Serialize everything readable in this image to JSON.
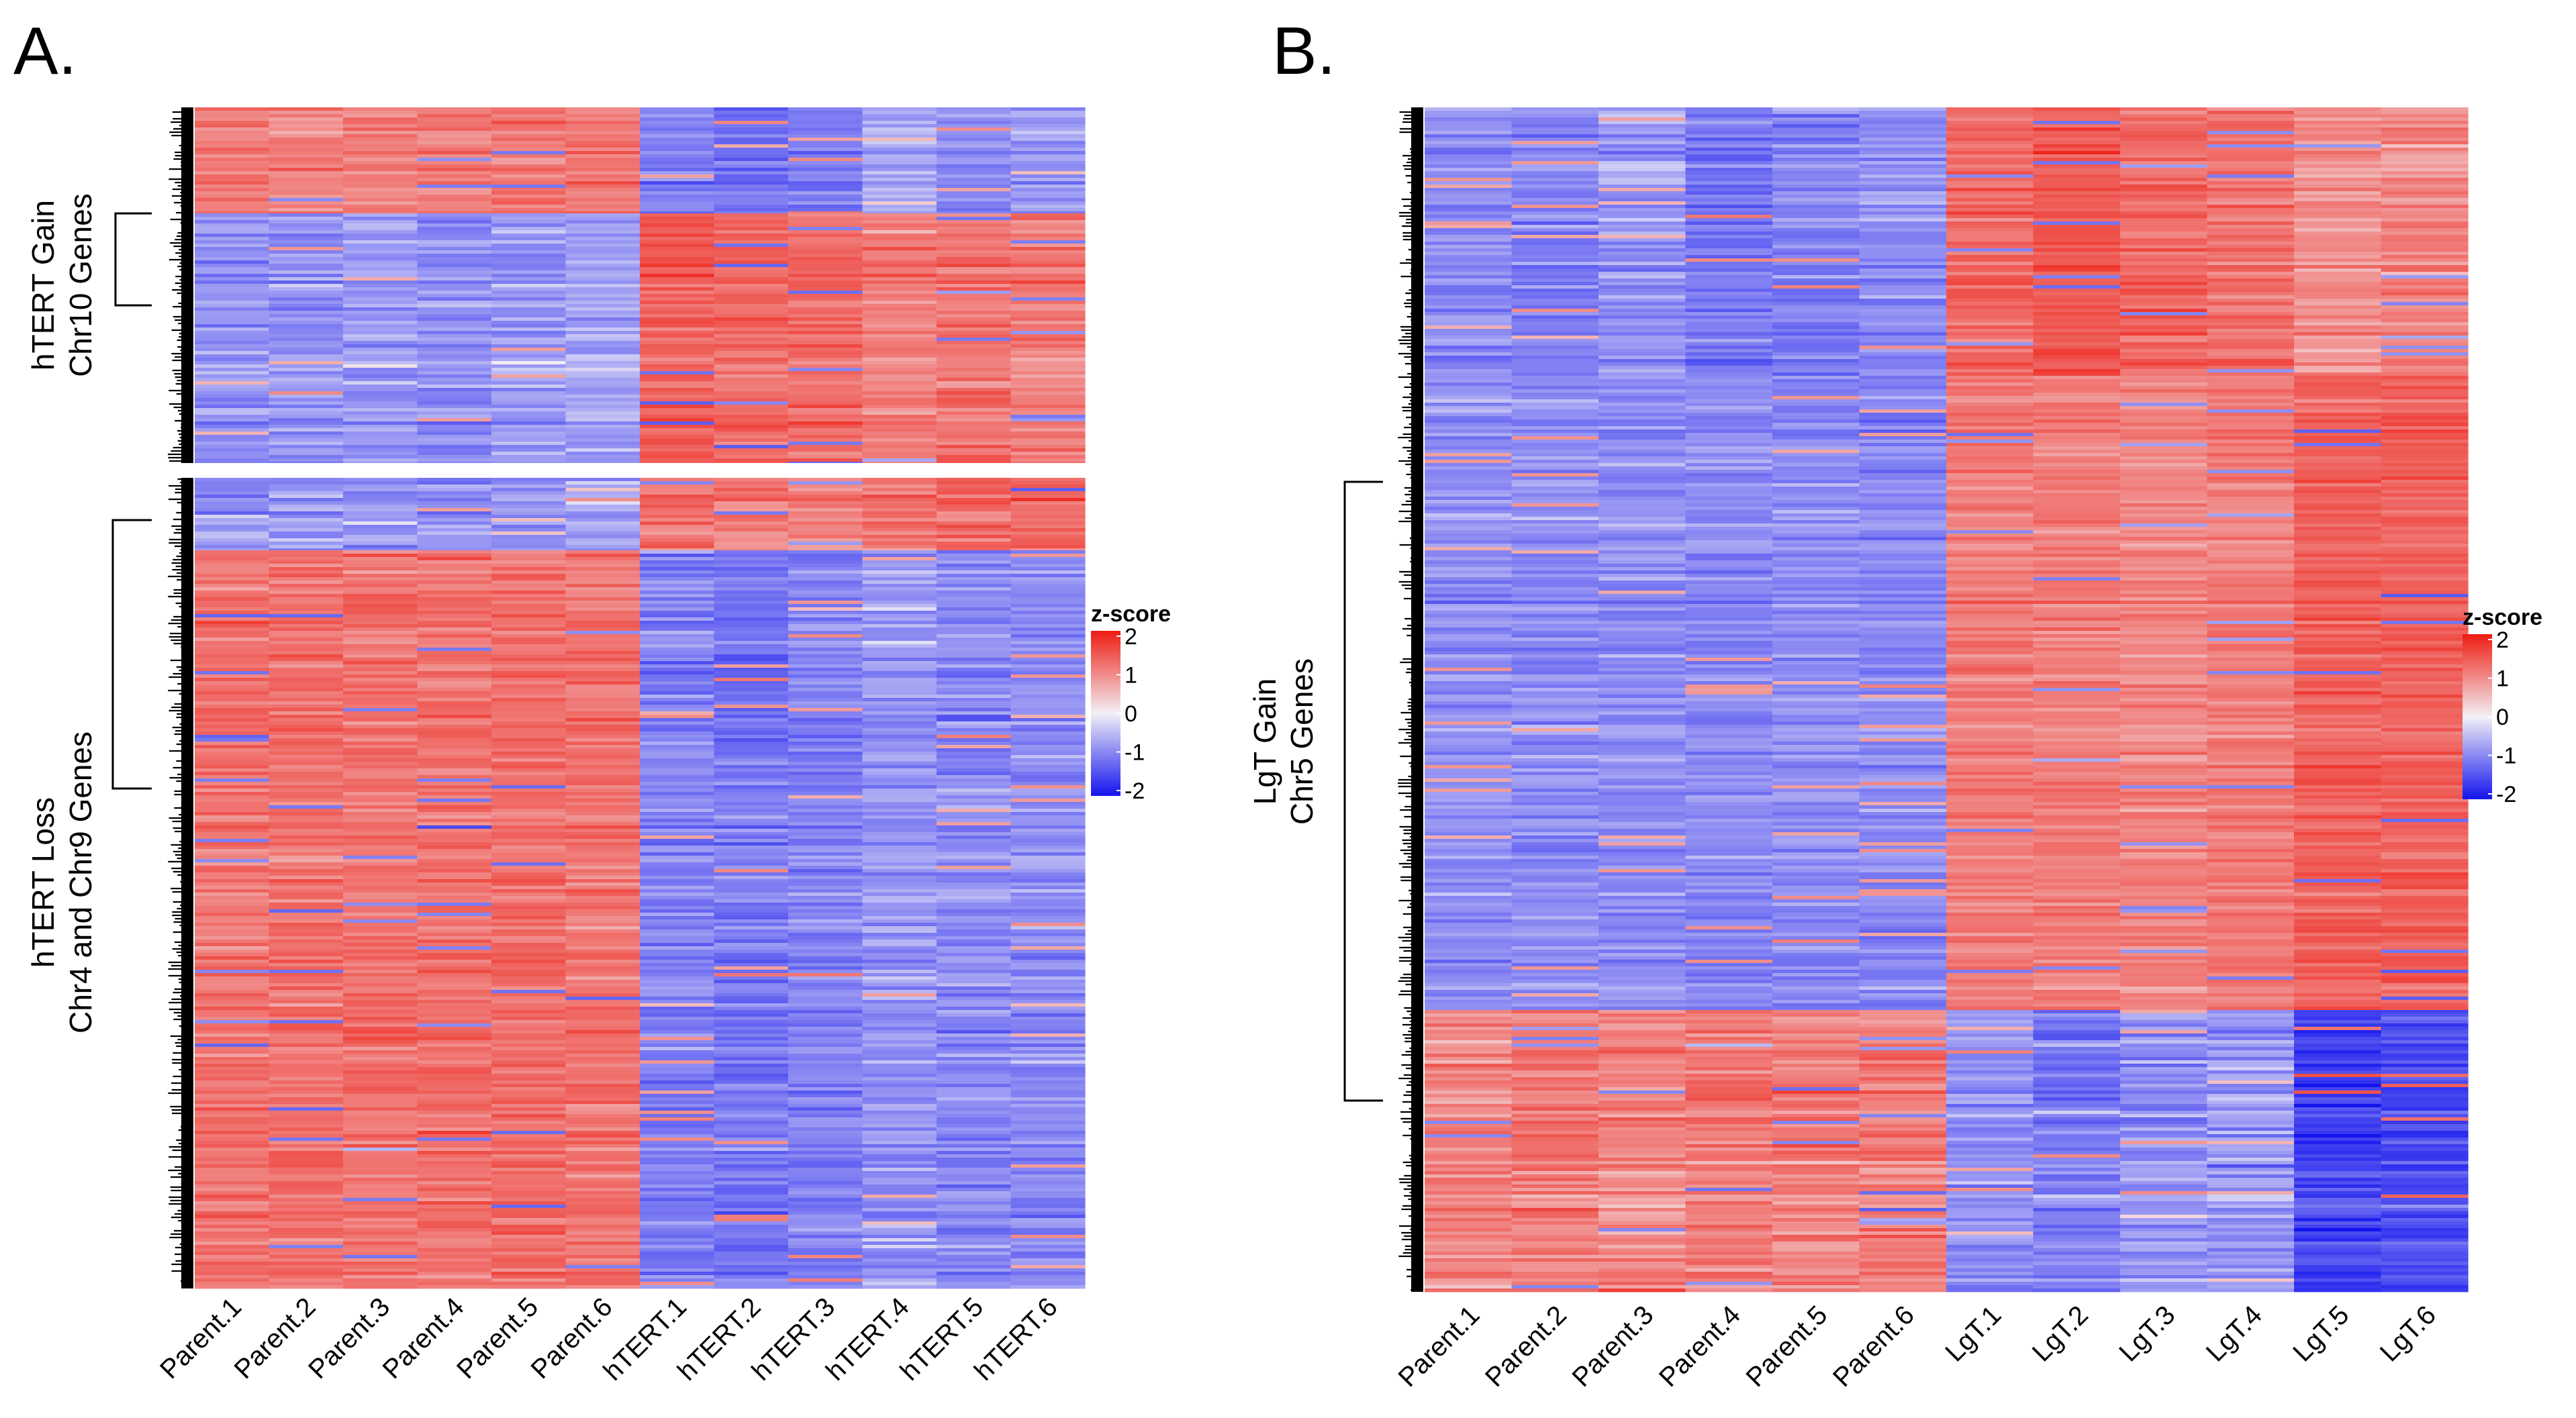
{
  "colors": {
    "high": "#ee1c12",
    "mid": "#f2f0f6",
    "low": "#1414ee",
    "dendrogram": "#000000"
  },
  "chart_data": [
    {
      "type": "heatmap",
      "panel_label": "A.",
      "columns": [
        "Parent.1",
        "Parent.2",
        "Parent.3",
        "Parent.4",
        "Parent.5",
        "Parent.6",
        "hTERT.1",
        "hTERT.2",
        "hTERT.3",
        "hTERT.4",
        "hTERT.5",
        "hTERT.6"
      ],
      "row_clusters": [
        {
          "label_line1": "hTERT Gain",
          "label_line2": "Chr10 Genes",
          "column_means": [
            0.9,
            0.9,
            0.9,
            0.9,
            1.0,
            0.9,
            -0.8,
            -1.0,
            -0.9,
            -0.5,
            -0.7,
            -0.6
          ],
          "note": "top rows; body below reverses",
          "body_means": [
            -0.7,
            -0.7,
            -0.6,
            -0.7,
            -0.6,
            -0.5,
            1.2,
            1.1,
            1.1,
            0.9,
            1.0,
            0.9
          ]
        },
        {
          "label_line1": "hTERT Loss",
          "label_line2": "Chr4 and Chr9 Genes",
          "column_means": [
            -0.6,
            -0.6,
            -0.6,
            -0.6,
            -0.6,
            -0.5,
            1.0,
            0.9,
            0.9,
            1.0,
            1.1,
            1.1
          ],
          "body_means": [
            1.0,
            1.0,
            1.0,
            1.0,
            1.05,
            1.0,
            -0.8,
            -0.9,
            -0.8,
            -0.6,
            -0.7,
            -0.7
          ]
        }
      ],
      "legend": {
        "title": "z-score",
        "ticks": [
          "2",
          "1",
          "0",
          "-1",
          "-2"
        ],
        "range": [
          -2,
          2
        ]
      }
    },
    {
      "type": "heatmap",
      "panel_label": "B.",
      "columns": [
        "Parent.1",
        "Parent.2",
        "Parent.3",
        "Parent.4",
        "Parent.5",
        "Parent.6",
        "LgT.1",
        "LgT.2",
        "LgT.3",
        "LgT.4",
        "LgT.5",
        "LgT.6"
      ],
      "row_clusters": [
        {
          "label_line1": "LgT Gain",
          "label_line2": "Chr5 Genes",
          "top_means": [
            -0.7,
            -0.8,
            -0.6,
            -0.9,
            -0.8,
            -0.7,
            1.1,
            1.3,
            1.1,
            1.0,
            0.7,
            0.8
          ],
          "body_means": [
            -0.7,
            -0.7,
            -0.7,
            -0.75,
            -0.7,
            -0.75,
            0.9,
            0.9,
            0.8,
            0.9,
            1.2,
            1.2
          ],
          "bottom_means": [
            0.8,
            0.9,
            0.8,
            0.9,
            0.9,
            0.9,
            -0.7,
            -0.8,
            -0.6,
            -0.6,
            -1.5,
            -1.4
          ]
        }
      ],
      "legend": {
        "title": "z-score",
        "ticks": [
          "2",
          "1",
          "0",
          "-1",
          "-2"
        ],
        "range": [
          -2,
          2
        ]
      }
    }
  ]
}
